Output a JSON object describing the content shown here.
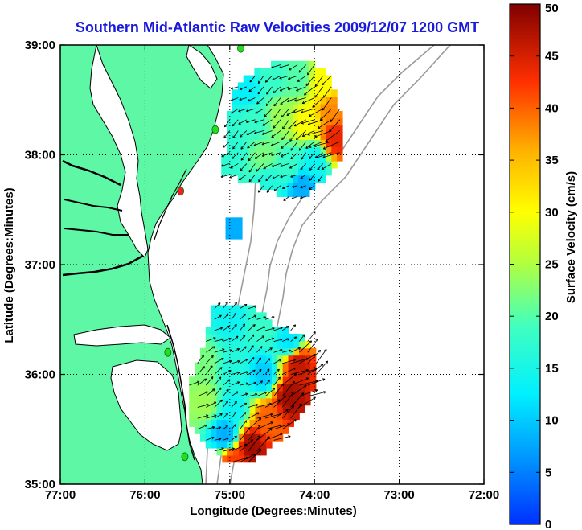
{
  "title": "Southern Mid-Atlantic Raw Velocities 2009/12/07 1200 GMT",
  "title_color": "#1a1adc",
  "xlabel": "Longitude (Degrees:Minutes)",
  "ylabel": "Latitude (Degrees:Minutes)",
  "colorbar_label": "Surface Velocity (cm/s)",
  "colors": {
    "land": "#5ef7a6",
    "water": "#ffffff",
    "coast": "#000000",
    "bathymetry": "#9a9a9a",
    "station": "#22dd22",
    "station_alert": "#ee2222",
    "vector": "#000000"
  },
  "chart_data": {
    "type": "map",
    "xlim": [
      -77,
      -72
    ],
    "ylim": [
      35,
      39
    ],
    "xticks": [
      -77,
      -76,
      -75,
      -74,
      -73,
      -72
    ],
    "xtick_labels": [
      "77:00",
      "76:00",
      "75:00",
      "74:00",
      "73:00",
      "72:00"
    ],
    "yticks": [
      35,
      36,
      37,
      38,
      39
    ],
    "ytick_labels": [
      "35:00",
      "36:00",
      "37:00",
      "38:00",
      "39:00"
    ],
    "grid": true,
    "colorbar": {
      "range": [
        0,
        50
      ],
      "ticks": [
        0,
        5,
        10,
        15,
        20,
        25,
        30,
        35,
        40,
        45,
        50
      ],
      "colormap": "jet"
    },
    "stations": [
      {
        "lon": -74.87,
        "lat": 38.97,
        "status": "ok"
      },
      {
        "lon": -75.17,
        "lat": 38.23,
        "status": "ok"
      },
      {
        "lon": -75.58,
        "lat": 37.67,
        "status": "alert"
      },
      {
        "lon": -75.73,
        "lat": 36.2,
        "status": "ok"
      },
      {
        "lon": -75.53,
        "lat": 35.25,
        "status": "ok"
      }
    ],
    "velocity_regions": [
      {
        "name": "north",
        "outline": [
          [
            -74.97,
            38.6
          ],
          [
            -74.7,
            38.78
          ],
          [
            -74.3,
            38.86
          ],
          [
            -74.05,
            38.85
          ],
          [
            -73.8,
            38.72
          ],
          [
            -73.7,
            38.42
          ],
          [
            -73.67,
            38.0
          ],
          [
            -73.85,
            37.8
          ],
          [
            -74.1,
            37.62
          ],
          [
            -74.35,
            37.62
          ],
          [
            -74.85,
            37.78
          ],
          [
            -75.1,
            37.8
          ],
          [
            -75.05,
            38.1
          ],
          [
            -74.97,
            38.6
          ]
        ],
        "speed_samples": [
          [
            -74.8,
            38.6,
            13
          ],
          [
            -74.5,
            38.7,
            18
          ],
          [
            -74.2,
            38.7,
            20
          ],
          [
            -73.9,
            38.65,
            30
          ],
          [
            -73.8,
            38.4,
            38
          ],
          [
            -73.75,
            38.15,
            44
          ],
          [
            -74.1,
            38.3,
            30
          ],
          [
            -74.4,
            38.35,
            24
          ],
          [
            -74.7,
            38.3,
            18
          ],
          [
            -74.95,
            38.05,
            17
          ],
          [
            -74.6,
            38.0,
            22
          ],
          [
            -74.3,
            37.9,
            18
          ],
          [
            -74.0,
            37.95,
            14
          ],
          [
            -74.15,
            37.72,
            8
          ],
          [
            -74.55,
            37.75,
            16
          ]
        ],
        "flow": [
          -0.5,
          -0.35
        ]
      },
      {
        "name": "south",
        "outline": [
          [
            -75.2,
            36.6
          ],
          [
            -74.8,
            36.65
          ],
          [
            -74.45,
            36.45
          ],
          [
            -74.1,
            36.35
          ],
          [
            -73.95,
            36.1
          ],
          [
            -74.05,
            35.75
          ],
          [
            -74.35,
            35.45
          ],
          [
            -74.75,
            35.2
          ],
          [
            -75.05,
            35.2
          ],
          [
            -75.45,
            35.5
          ],
          [
            -75.48,
            35.9
          ],
          [
            -75.3,
            36.3
          ],
          [
            -75.2,
            36.6
          ]
        ],
        "speed_samples": [
          [
            -75.0,
            36.5,
            14
          ],
          [
            -74.6,
            36.45,
            18
          ],
          [
            -74.3,
            36.3,
            12
          ],
          [
            -75.3,
            36.1,
            22
          ],
          [
            -74.95,
            36.05,
            16
          ],
          [
            -74.6,
            36.0,
            10
          ],
          [
            -74.2,
            36.1,
            46
          ],
          [
            -75.3,
            35.75,
            24
          ],
          [
            -74.95,
            35.7,
            14
          ],
          [
            -74.55,
            35.6,
            40
          ],
          [
            -74.3,
            35.8,
            48
          ],
          [
            -75.05,
            35.45,
            8
          ],
          [
            -74.75,
            35.35,
            48
          ],
          [
            -74.95,
            35.22,
            42
          ]
        ],
        "flow": [
          0.6,
          0.4
        ]
      }
    ],
    "isolated_cells": [
      {
        "lon": -74.95,
        "lat": 37.33,
        "speed": 8
      }
    ]
  }
}
